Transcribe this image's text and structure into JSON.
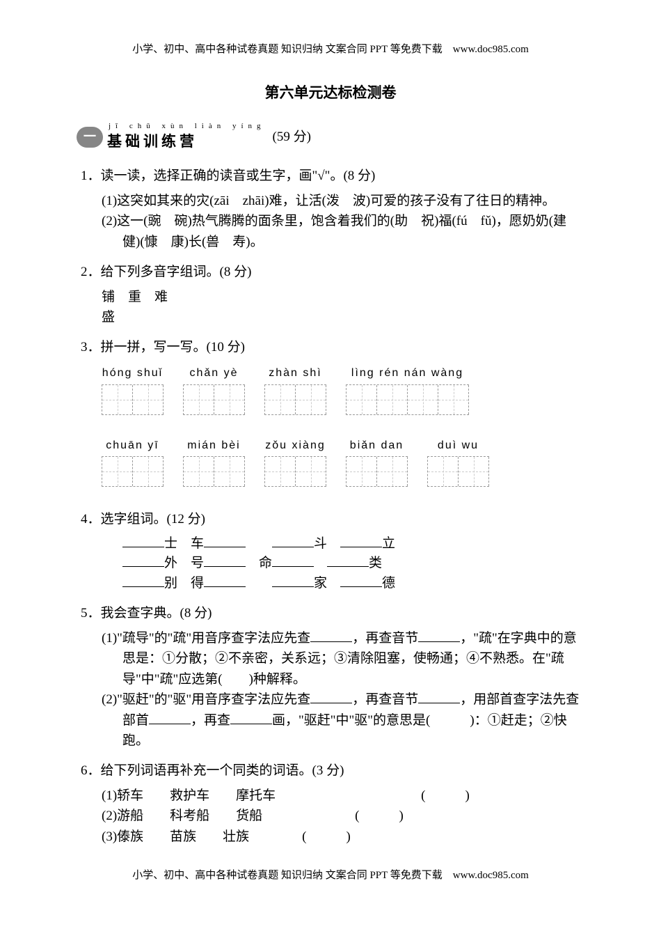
{
  "header": "小学、初中、高中各种试卷真题 知识归纳 文案合同 PPT 等免费下载　www.doc985.com",
  "title": "第六单元达标检测卷",
  "section1": {
    "badge": "一",
    "pinyin": "jī chǔ xùn liàn yíng",
    "title": "基础训练营",
    "points": "(59 分)"
  },
  "q1": {
    "text": "1．读一读，选择正确的读音或生字，画\"√\"。(8 分)",
    "item1": "(1)这突如其来的灾(zāi　zhāi)难，让活(泼　波)可爱的孩子没有了往日的精神。",
    "item2": "(2)这一(豌　碗)热气腾腾的面条里，饱含着我们的(助　祝)福(fú　fǔ)，愿奶奶(建　健)(慷　康)长(兽　寿)。"
  },
  "q2": {
    "text": "2．给下列多音字组词。(8 分)",
    "chars": "铺　重　难",
    "chars2": "盛"
  },
  "q3": {
    "text": "3．拼一拼，写一写。(10 分)",
    "row1": [
      {
        "pinyin": "hóng shuǐ",
        "boxes": 2
      },
      {
        "pinyin": "chǎn yè",
        "boxes": 2
      },
      {
        "pinyin": "zhàn shì",
        "boxes": 2
      },
      {
        "pinyin": "lìng rén nán wàng",
        "boxes": 4
      }
    ],
    "row2": [
      {
        "pinyin": "chuān yī",
        "boxes": 2
      },
      {
        "pinyin": "mián bèi",
        "boxes": 2
      },
      {
        "pinyin": "zǒu xiàng",
        "boxes": 2
      },
      {
        "pinyin": "biǎn dan",
        "boxes": 2
      },
      {
        "pinyin": "duì wu",
        "boxes": 2
      }
    ]
  },
  "q4": {
    "text": "4．选字组词。(12 分)",
    "row1a": "______士　车______　　______斗　______立",
    "row1b": "______外　号______　命______　______类",
    "row1c": "______别　得______　　______家　______德"
  },
  "q5": {
    "text": "5．我会查字典。(8 分)",
    "item1": "(1)\"疏导\"的\"疏\"用音序查字法应先查______，再查音节______，\"疏\"在字典中的意思是：①分散；②不亲密，关系远；③清除阻塞，使畅通；④不熟悉。在\"疏导\"中\"疏\"应选第(　　)种解释。",
    "item2": "(2)\"驱赶\"的\"驱\"用音序查字法应先查______，再查音节______，用部首查字法先查部首______，再查______画，\"驱赶\"中\"驱\"的意思是(　　　)：①赶走；②快跑。"
  },
  "q6": {
    "text": "6．给下列词语再补充一个同类的词语。(3 分)",
    "items": [
      {
        "label": "(1)轿车",
        "words": "救护车　　摩托车",
        "spacing": 1
      },
      {
        "label": "(2)游船",
        "words": "科考船　　货船",
        "spacing": 2
      },
      {
        "label": "(3)傣族",
        "words": "苗族　　壮族",
        "spacing": 3
      }
    ]
  },
  "footer": "小学、初中、高中各种试卷真题 知识归纳 文案合同 PPT 等免费下载　www.doc985.com"
}
